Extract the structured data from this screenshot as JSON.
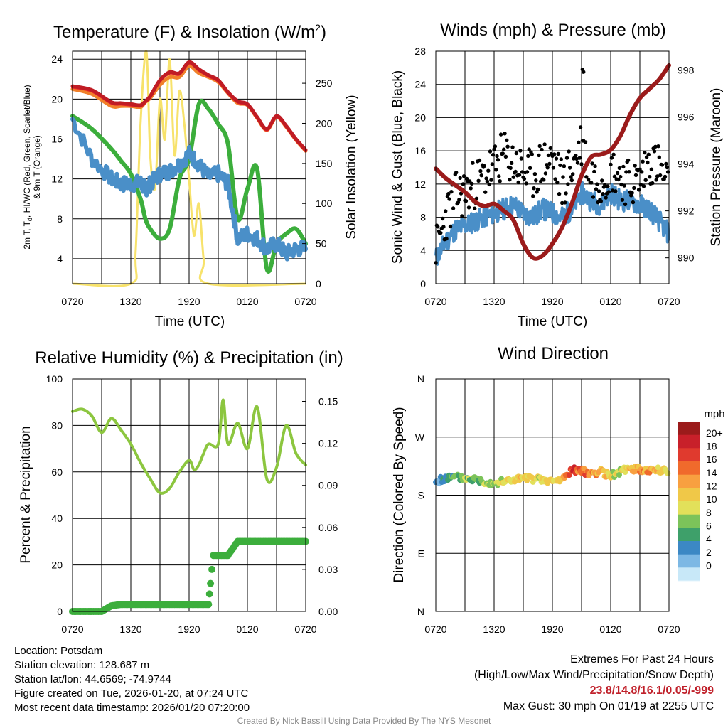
{
  "colors": {
    "temp": "#c01c24",
    "hiwc": "#e8222a",
    "t9m": "#f0802a",
    "dew": "#4a8fc8",
    "wetbulb": "#3cae3c",
    "solar": "#f7e26b",
    "wind": "#4a8fc8",
    "gust": "#000000",
    "pressure": "#9b1b1b",
    "rh": "#8cc63f",
    "precip": "#3cae3c",
    "grid": "#000000",
    "extremes": "#c0202a",
    "credit": "#888888"
  },
  "x_ticks": [
    "0720",
    "1320",
    "1920",
    "0120",
    "0720"
  ],
  "chart_data": [
    {
      "id": "temperature",
      "type": "line",
      "title": "Temperature (F) & Insolation (W/m",
      "title_sup": "2",
      "title_end": ")",
      "xlabel": "Time (UTC)",
      "ylabel_line1": "2m T, T",
      "ylabel_sub": "d",
      "ylabel_line1_end": ", HI/WC (Red, Green, Scarlet/Blue)",
      "ylabel_line2": "& 9m T (Orange)",
      "y2label": "Solar Insolation (Yellow)",
      "ylim": [
        1.5,
        24.8
      ],
      "yticks": [
        "4",
        "8",
        "12",
        "16",
        "20",
        "24"
      ],
      "y2lim": [
        0,
        290
      ],
      "y2ticks": [
        "0",
        "50",
        "100",
        "150",
        "200",
        "250"
      ],
      "x_hours": [
        0,
        2,
        4,
        5,
        6,
        7,
        7.5,
        8,
        9,
        10,
        11,
        12,
        13,
        14,
        15,
        16,
        17,
        18,
        19,
        20,
        21,
        22,
        23,
        24
      ],
      "series": [
        {
          "name": "2m T",
          "color_key": "temp",
          "values": [
            21.3,
            20.9,
            19.7,
            19.6,
            19.5,
            19.4,
            19.8,
            20.3,
            21.9,
            22.7,
            22.6,
            23.7,
            23.0,
            22.4,
            21.9,
            20.7,
            19.8,
            19.5,
            18.2,
            17.0,
            18.3,
            17.3,
            16.0,
            14.9
          ]
        },
        {
          "name": "HI/WC",
          "color_key": "hiwc",
          "values": [
            21.2,
            20.8,
            19.6,
            19.5,
            19.4,
            19.3,
            19.7,
            20.2,
            21.8,
            22.6,
            22.5,
            23.6,
            22.9,
            22.3,
            21.8,
            20.6,
            19.7,
            19.4,
            18.1,
            16.9,
            18.2,
            17.2,
            15.9,
            14.8
          ]
        },
        {
          "name": "9m T",
          "color_key": "t9m",
          "values": [
            21.0,
            20.5,
            19.3,
            19.3,
            19.3,
            19.2,
            19.7,
            20.1,
            21.4,
            22.2,
            22.2,
            23.3,
            22.6,
            22.2,
            21.7,
            20.6,
            19.6,
            19.4,
            18.1,
            16.9,
            18.2,
            17.2,
            15.9,
            14.8
          ]
        },
        {
          "name": "Tdew",
          "color_key": "dew",
          "values": [
            18.0,
            14.0,
            12.0,
            11.5,
            11.5,
            11.6,
            11.0,
            11.5,
            12.5,
            12.8,
            13.5,
            14.5,
            13.5,
            12.2,
            12.5,
            11.5,
            6.0,
            6.5,
            6.0,
            5.0,
            5.5,
            4.5,
            5.0,
            5.0
          ]
        },
        {
          "name": "Wet bulb",
          "color_key": "wetbulb",
          "values": [
            18.3,
            17.0,
            15.0,
            13.8,
            12.5,
            10.0,
            8.0,
            7.0,
            6.0,
            7.0,
            12.0,
            14.0,
            19.5,
            19.0,
            17.5,
            15.5,
            8.0,
            11.0,
            13.0,
            3.0,
            5.5,
            6.5,
            7.0,
            5.5
          ]
        }
      ],
      "solar": {
        "name": "Solar Insolation",
        "color_key": "solar",
        "x_hours": [
          0,
          6.0,
          6.5,
          7.0,
          7.6,
          8.0,
          8.5,
          9.0,
          9.5,
          10.0,
          10.5,
          11.0,
          11.5,
          12.0,
          12.5,
          13.0,
          13.5,
          14.0,
          24
        ],
        "values": [
          0,
          0,
          40,
          200,
          290,
          160,
          120,
          230,
          180,
          280,
          160,
          240,
          200,
          130,
          60,
          100,
          30,
          0,
          0
        ]
      }
    },
    {
      "id": "winds",
      "type": "line",
      "title": "Winds (mph) & Pressure (mb)",
      "xlabel": "Time (UTC)",
      "ylabel": "Sonic Wind & Gust (Blue, Black)",
      "y2label": "Station Pressure (Maroon)",
      "ylim": [
        0,
        28
      ],
      "yticks": [
        "0",
        "4",
        "8",
        "12",
        "16",
        "20",
        "24",
        "28"
      ],
      "y2lim": [
        988.9,
        998.8
      ],
      "y2ticks": [
        "990",
        "992",
        "994",
        "996",
        "998"
      ],
      "x_hours": [
        0,
        1,
        2,
        3,
        4,
        5,
        6,
        7,
        8,
        9,
        10,
        11,
        12,
        13,
        14,
        15,
        16,
        17,
        18,
        19,
        20,
        21,
        22,
        23,
        24
      ],
      "series": [
        {
          "name": "Sonic Wind",
          "color_key": "wind",
          "values": [
            3.0,
            5.0,
            6.5,
            7.0,
            7.5,
            8.0,
            8.5,
            9.0,
            9.5,
            8.5,
            8.0,
            9.0,
            8.5,
            8.0,
            9.0,
            11.0,
            10.0,
            9.5,
            11.0,
            10.0,
            10.0,
            9.5,
            9.0,
            7.5,
            6.0
          ]
        },
        {
          "name": "Gust",
          "color_key": "gust",
          "values": [
            4.0,
            8.0,
            10.5,
            11.0,
            12.0,
            13.0,
            14.0,
            15.5,
            14.5,
            13.5,
            13.0,
            14.5,
            15.0,
            12.0,
            14.0,
            17.0,
            13.0,
            12.5,
            14.0,
            13.0,
            12.0,
            12.5,
            15.0,
            14.0,
            11.0
          ]
        },
        {
          "name": "Station Pressure",
          "color_key": "pressure",
          "values": [
            993.8,
            993.4,
            993.1,
            992.8,
            992.4,
            992.2,
            992.3,
            992.0,
            991.6,
            990.6,
            990.0,
            990.1,
            990.6,
            991.3,
            992.3,
            993.5,
            994.3,
            994.4,
            994.6,
            995.2,
            996.1,
            996.8,
            997.2,
            997.6,
            998.2
          ]
        }
      ]
    },
    {
      "id": "humidity",
      "type": "line",
      "title": "Relative Humidity (%) & Precipitation (in)",
      "ylabel": "Percent & Precipitation",
      "ylim": [
        0,
        100
      ],
      "yticks": [
        "0",
        "20",
        "40",
        "60",
        "80",
        "100"
      ],
      "y2lim": [
        0,
        0.166
      ],
      "y2ticks": [
        "0.00",
        "0.03",
        "0.06",
        "0.09",
        "0.12",
        "0.15"
      ],
      "x_hours": [
        0,
        1,
        2,
        3,
        4,
        5,
        6,
        7,
        8,
        9,
        10,
        11,
        12,
        12.5,
        13,
        13.5,
        14,
        15,
        15.5,
        16,
        17,
        18,
        19,
        20,
        21,
        22,
        23,
        24
      ],
      "series": [
        {
          "name": "Relative Humidity",
          "color_key": "rh",
          "values": [
            86,
            87,
            84,
            77,
            83,
            78,
            72,
            64,
            57,
            51,
            53,
            60,
            65,
            61,
            63,
            68,
            72,
            72,
            91,
            72,
            81,
            70,
            88,
            57,
            62,
            80,
            68,
            63
          ]
        },
        {
          "name": "Precipitation",
          "color_key": "precip",
          "values": [
            0,
            0,
            0,
            0.004,
            0.005,
            0.005,
            0.005,
            0.005,
            0.005,
            0.005,
            0.005,
            0.005,
            0.005,
            0.005,
            0.005,
            0.005,
            0.02,
            0.04,
            0.04,
            0.04,
            0.05,
            0.05,
            0.05,
            0.05,
            0.05,
            0.05,
            0.05,
            0.05
          ]
        }
      ],
      "precip_x_hours": [
        0,
        1,
        2,
        3,
        4,
        5,
        6,
        7,
        8,
        9,
        10,
        11,
        12,
        12.5,
        13,
        13.5,
        14,
        14.2,
        14.5,
        15,
        16,
        17,
        18,
        19,
        20,
        21,
        22,
        24
      ],
      "precip_values": [
        0,
        0,
        0,
        0,
        0.004,
        0.005,
        0.005,
        0.005,
        0.005,
        0.005,
        0.005,
        0.005,
        0.005,
        0.005,
        0.005,
        0.005,
        0.005,
        0.02,
        0.04,
        0.04,
        0.04,
        0.05,
        0.05,
        0.05,
        0.05,
        0.05,
        0.05,
        0.05
      ]
    },
    {
      "id": "wind-direction",
      "type": "scatter",
      "title": "Wind Direction",
      "ylabel": "Direction (Colored By Speed)",
      "ylim": [
        0,
        360
      ],
      "yticks": [
        "N",
        "E",
        "S",
        "W",
        "N"
      ],
      "x_hours": [
        0,
        1,
        2,
        3,
        4,
        5,
        6,
        7,
        8,
        9,
        10,
        11,
        12,
        13,
        14,
        15,
        16,
        17,
        18,
        19,
        20,
        21,
        22,
        23,
        24
      ],
      "series": [
        {
          "name": "Direction",
          "values": [
            201,
            206,
            208,
            206,
            205,
            201,
            199,
            201,
            204,
            206,
            205,
            203,
            201,
            204,
            219,
            217,
            214,
            216,
            210,
            216,
            222,
            219,
            219,
            218,
            217
          ]
        },
        {
          "name": "Speed",
          "values": [
            1.5,
            3,
            5,
            7,
            6,
            7,
            8,
            9,
            10,
            11,
            10,
            9,
            10,
            11,
            17,
            15,
            13,
            12,
            10,
            9,
            11,
            13,
            14,
            10,
            9
          ]
        }
      ],
      "colorbar": {
        "title": "mph",
        "labels": [
          "20+",
          "18",
          "16",
          "14",
          "12",
          "10",
          "8",
          "6",
          "4",
          "2",
          "0"
        ],
        "colors": [
          "#9b1b1b",
          "#c8202a",
          "#e03a2e",
          "#f06a2c",
          "#f8a040",
          "#f0c848",
          "#e2e05a",
          "#7cc35a",
          "#3ea06a",
          "#3c88c4",
          "#7db8e4",
          "#c8e8f8"
        ]
      }
    }
  ],
  "info": {
    "location": "Location: Potsdam",
    "elevation": "Station elevation: 128.687 m",
    "latlon": "Station lat/lon: 44.6569; -74.9744",
    "created": "Figure created on Tue, 2026-01-20, at 07:24 UTC",
    "recent": "Most recent data timestamp: 2026/01/20 07:20:00"
  },
  "extremes": {
    "title": "Extremes For Past 24 Hours",
    "subtitle": "(High/Low/Max Wind/Precipitation/Snow Depth)",
    "values": "23.8/14.8/16.1/0.05/-999",
    "gust": "Max Gust: 30 mph On 01/19 at 2255 UTC"
  },
  "credit": "Created By Nick Bassill Using Data Provided By The NYS Mesonet"
}
